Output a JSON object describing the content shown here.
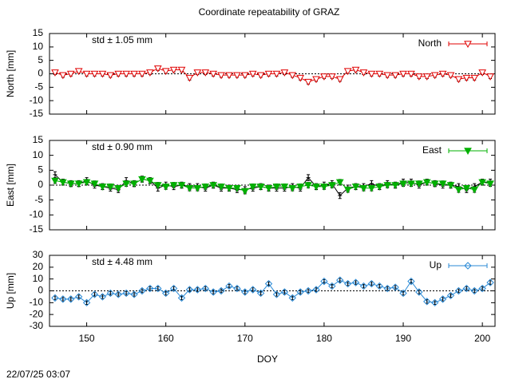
{
  "chart_data": [
    {
      "type": "line",
      "title": "Coordinate repeatability of GRAZ",
      "ylabel": "North [mm]",
      "annotation": "std ± 1.05 mm",
      "x": [
        146,
        147,
        148,
        149,
        150,
        151,
        152,
        153,
        154,
        155,
        156,
        157,
        158,
        159,
        160,
        161,
        162,
        163,
        164,
        165,
        166,
        167,
        168,
        169,
        170,
        171,
        172,
        173,
        174,
        175,
        176,
        177,
        178,
        179,
        180,
        181,
        182,
        183,
        184,
        185,
        186,
        187,
        188,
        189,
        190,
        191,
        192,
        193,
        194,
        195,
        196,
        197,
        198,
        199,
        200,
        201
      ],
      "xlim": [
        145.3,
        201.6
      ],
      "xticks": [
        150,
        160,
        170,
        180,
        190,
        200
      ],
      "ylim": [
        -15,
        15
      ],
      "yticks": [
        -15,
        -10,
        -5,
        0,
        5,
        10,
        15
      ],
      "series": [
        {
          "name": "North",
          "color": "#e00000",
          "marker": "triangle-down-open",
          "error": 0.8,
          "values": [
            0.5,
            -0.5,
            0,
            1,
            0,
            0,
            0,
            -0.5,
            0,
            0,
            0,
            0,
            0.5,
            2,
            1,
            1.5,
            1.5,
            -1.5,
            0.5,
            0.5,
            0,
            -0.5,
            -0.5,
            -0.5,
            -0.5,
            0,
            -0.5,
            0,
            0,
            0.5,
            -0.5,
            -1.5,
            -3,
            -2,
            -1,
            -1,
            -2,
            1,
            1.5,
            0.5,
            0,
            0,
            -0.5,
            -0.5,
            0,
            0,
            -1,
            -1,
            -0.5,
            0,
            -0.5,
            -2,
            -1.5,
            -1.5,
            0.5,
            -1
          ]
        }
      ]
    },
    {
      "type": "line",
      "ylabel": "East [mm]",
      "annotation": "std ± 0.90 mm",
      "x": [
        146,
        147,
        148,
        149,
        150,
        151,
        152,
        153,
        154,
        155,
        156,
        157,
        158,
        159,
        160,
        161,
        162,
        163,
        164,
        165,
        166,
        167,
        168,
        169,
        170,
        171,
        172,
        173,
        174,
        175,
        176,
        177,
        178,
        179,
        180,
        181,
        182,
        183,
        184,
        185,
        186,
        187,
        188,
        189,
        190,
        191,
        192,
        193,
        194,
        195,
        196,
        197,
        198,
        199,
        200,
        201
      ],
      "xlim": [
        145.3,
        201.6
      ],
      "xticks": [
        150,
        160,
        170,
        180,
        190,
        200
      ],
      "ylim": [
        -15,
        15
      ],
      "yticks": [
        -15,
        -10,
        -5,
        0,
        5,
        10,
        15
      ],
      "series": [
        {
          "color": "#000000",
          "marker": "cross",
          "error": 1.0,
          "values": [
            3.5,
            1,
            0.5,
            0.5,
            1.5,
            0,
            -0.5,
            -1,
            -1.5,
            1.5,
            0.5,
            2,
            1.5,
            -1,
            0,
            -0.5,
            0,
            -0.5,
            -0.5,
            -1,
            0,
            -1,
            -1,
            -1.5,
            -1.5,
            -1,
            -0.5,
            -1,
            -1,
            -1,
            -0.5,
            -1,
            2.5,
            -0.5,
            0,
            0.5,
            -3.5,
            -1,
            -0.5,
            -0.5,
            0.5,
            -0.5,
            0.5,
            0,
            1,
            1,
            0,
            1,
            0.5,
            0,
            0,
            -0.5,
            -1.5,
            -0.5,
            1,
            1
          ]
        },
        {
          "name": "East",
          "color": "#00b000",
          "marker": "triangle-down-filled",
          "error": 0.9,
          "values": [
            1.5,
            1,
            0.5,
            0.5,
            1,
            0.5,
            -0.5,
            -0.5,
            -1,
            0.5,
            0.5,
            2,
            1.5,
            0,
            -0.5,
            0,
            0,
            -1,
            -1,
            -0.5,
            0,
            -0.5,
            -1,
            -1,
            -2,
            -0.5,
            -0.5,
            -1,
            -0.5,
            -0.5,
            -1,
            -0.5,
            0,
            -0.5,
            -0.5,
            0,
            1,
            -1.5,
            -0.5,
            -1,
            -1,
            -0.5,
            0,
            0,
            0.5,
            0.5,
            0.5,
            1,
            0.5,
            0.5,
            0,
            -1.5,
            -1,
            -1.5,
            1,
            0.5
          ]
        }
      ]
    },
    {
      "type": "line",
      "ylabel": "Up [mm]",
      "annotation": "std ± 4.48 mm",
      "xlabel": "DOY",
      "x": [
        146,
        147,
        148,
        149,
        150,
        151,
        152,
        153,
        154,
        155,
        156,
        157,
        158,
        159,
        160,
        161,
        162,
        163,
        164,
        165,
        166,
        167,
        168,
        169,
        170,
        171,
        172,
        173,
        174,
        175,
        176,
        177,
        178,
        179,
        180,
        181,
        182,
        183,
        184,
        185,
        186,
        187,
        188,
        189,
        190,
        191,
        192,
        193,
        194,
        195,
        196,
        197,
        198,
        199,
        200,
        201
      ],
      "xlim": [
        145.3,
        201.6
      ],
      "xticks": [
        150,
        160,
        170,
        180,
        190,
        200
      ],
      "ylim": [
        -30,
        30
      ],
      "yticks": [
        -30,
        -20,
        -10,
        0,
        10,
        20,
        30
      ],
      "series": [
        {
          "name": "Up",
          "color": "#2a8ad6",
          "marker": "diamond-open",
          "error": 1.5,
          "values": [
            -6,
            -7,
            -7,
            -5,
            -10,
            -3,
            -5,
            -2,
            -3,
            -2,
            -3,
            0,
            2,
            2,
            -2,
            2,
            -6,
            1,
            1,
            2,
            -1,
            0,
            4,
            2,
            -1,
            1,
            -2,
            6,
            -3,
            -1,
            -6,
            -1,
            0,
            1,
            8,
            4,
            9,
            6,
            7,
            4,
            6,
            4,
            2,
            3,
            -2,
            8,
            -1,
            -9,
            -10,
            -7,
            -4,
            0,
            2,
            0,
            2,
            7
          ]
        }
      ]
    }
  ],
  "footer": "22/07/25 03:07"
}
